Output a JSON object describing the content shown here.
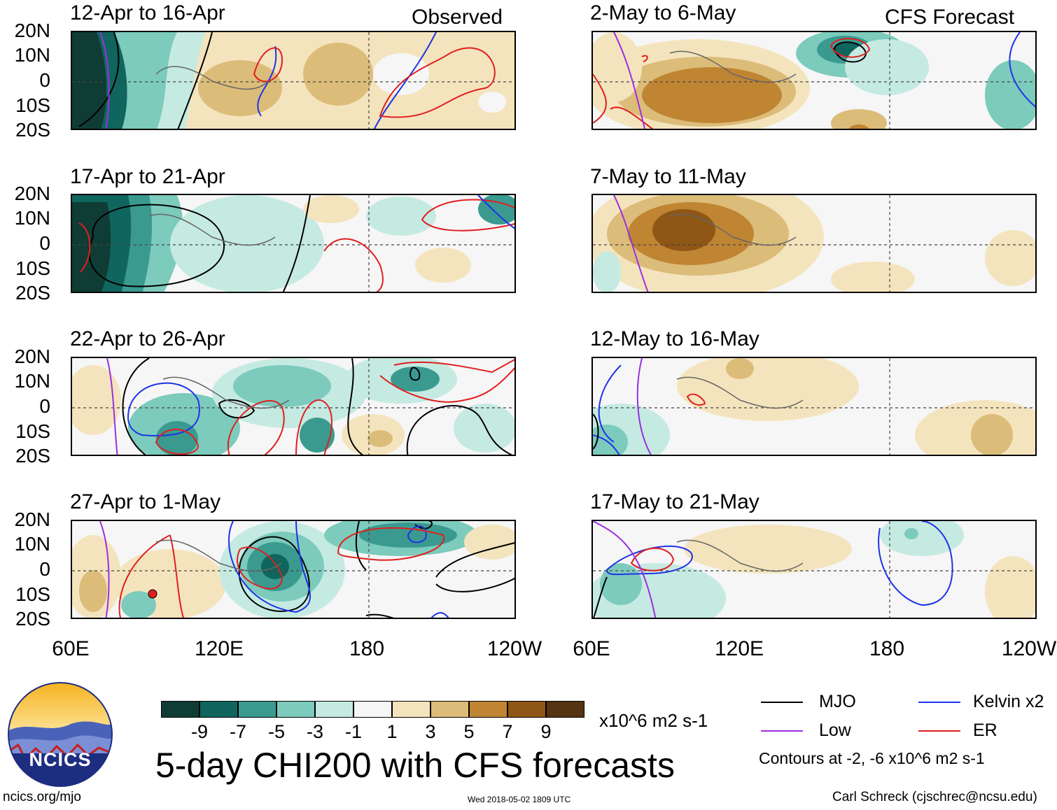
{
  "header": {
    "observed_label": "Observed",
    "forecast_label": "CFS Forecast"
  },
  "panels": [
    {
      "title": "12-Apr to 16-Apr",
      "column": "observed"
    },
    {
      "title": "17-Apr to 21-Apr",
      "column": "observed"
    },
    {
      "title": "22-Apr to 26-Apr",
      "column": "observed"
    },
    {
      "title": "27-Apr to 1-May",
      "column": "observed"
    },
    {
      "title": "2-May to 6-May",
      "column": "forecast"
    },
    {
      "title": "7-May to 11-May",
      "column": "forecast"
    },
    {
      "title": "12-May to 16-May",
      "column": "forecast"
    },
    {
      "title": "17-May to 21-May",
      "column": "forecast"
    }
  ],
  "lat_ticks": [
    "20N",
    "10N",
    "0",
    "10S",
    "20S"
  ],
  "lon_ticks": [
    "60E",
    "120E",
    "180",
    "120W"
  ],
  "colorbar": {
    "colors": [
      "#0f3d35",
      "#10665e",
      "#3a9a90",
      "#7ccbbd",
      "#c5eae2",
      "#f6f6f6",
      "#f4e4bd",
      "#dcbc79",
      "#bf8533",
      "#8f5615",
      "#553413"
    ],
    "labels": [
      "-9",
      "-7",
      "-5",
      "-3",
      "-1",
      "1",
      "3",
      "5",
      "7",
      "9"
    ],
    "units": "x10^6 m2 s-1"
  },
  "legend": {
    "items": [
      {
        "label": "MJO",
        "color": "#000000"
      },
      {
        "label": "Kelvin x2",
        "color": "#1f33e6"
      },
      {
        "label": "Low",
        "color": "#9b30e0"
      },
      {
        "label": "ER",
        "color": "#e01f1f"
      }
    ],
    "contour_note": "Contours at -2, -6 x10^6 m2 s-1"
  },
  "main_title": "5-day CHI200 with CFS forecasts",
  "logo_text": "NCICS",
  "footer": {
    "url": "ncics.org/mjo",
    "timestamp": "Wed 2018-05-02 1809 UTC",
    "author": "Carl Schreck (cjschrec@ncsu.edu)"
  }
}
